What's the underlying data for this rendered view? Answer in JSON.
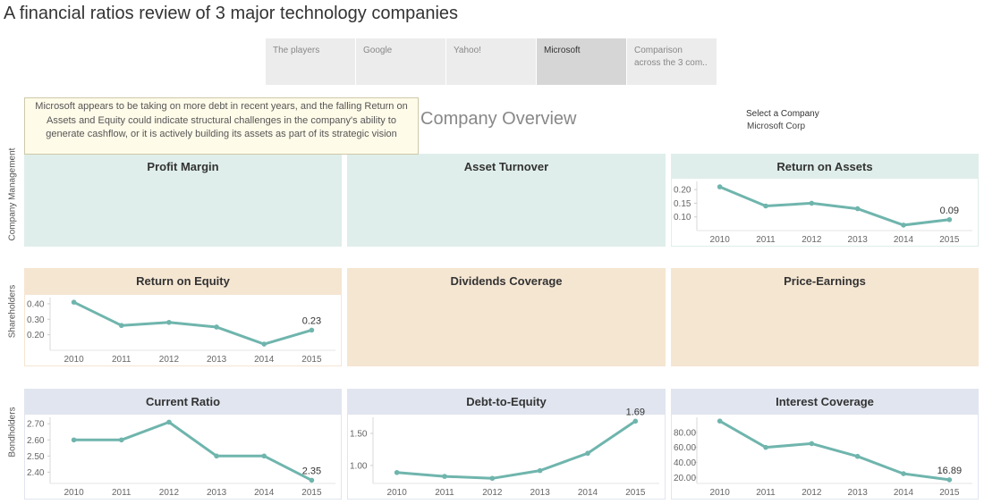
{
  "header": {
    "title": "A financial ratios review of 3 major technology companies"
  },
  "tabs": [
    {
      "label": "The players",
      "active": false
    },
    {
      "label": "Google",
      "active": false
    },
    {
      "label": "Yahoo!",
      "active": false
    },
    {
      "label": "Microsoft",
      "active": true
    },
    {
      "label": "Comparison across the 3 com..",
      "active": false
    }
  ],
  "overview_title": "Company Overview",
  "company_filter": {
    "label": "Select a Company",
    "value": "Microsoft Corp"
  },
  "tooltip": "Microsoft appears to be taking on more debt in recent years, and the falling Return on Assets and Equity could indicate structural challenges in the company's ability to generate cashflow, or it is actively building its assets as part of its strategic vision",
  "row_labels": {
    "management": "Company Management",
    "shareholders": "Shareholders",
    "bondholders": "Bondholders"
  },
  "panels": {
    "profit_margin": "Profit Margin",
    "asset_turnover": "Asset Turnover",
    "return_on_assets": "Return on Assets",
    "return_on_equity": "Return on Equity",
    "dividends_coverage": "Dividends Coverage",
    "price_earnings": "Price-Earnings",
    "current_ratio": "Current Ratio",
    "debt_to_equity": "Debt-to-Equity",
    "interest_coverage": "Interest Coverage"
  },
  "colors": {
    "line": "#6fb5ad",
    "management_bg": "#dfeeea",
    "shareholders_bg": "#f5e6d2",
    "bondholders_bg": "#e0e5ef"
  },
  "chart_data": [
    {
      "id": "roa",
      "type": "line",
      "title": "Return on Assets",
      "x": [
        "2010",
        "2011",
        "2012",
        "2013",
        "2014",
        "2015"
      ],
      "values": [
        0.21,
        0.14,
        0.15,
        0.13,
        0.07,
        0.09
      ],
      "yticks": [
        0.1,
        0.15,
        0.2
      ],
      "ytick_labels": [
        "0.10",
        "0.15",
        "0.20"
      ],
      "ylim": [
        0.05,
        0.23
      ],
      "last_label": "0.09"
    },
    {
      "id": "roe",
      "type": "line",
      "title": "Return on Equity",
      "x": [
        "2010",
        "2011",
        "2012",
        "2013",
        "2014",
        "2015"
      ],
      "values": [
        0.41,
        0.26,
        0.28,
        0.25,
        0.14,
        0.23
      ],
      "yticks": [
        0.2,
        0.3,
        0.4
      ],
      "ytick_labels": [
        "0.20",
        "0.30",
        "0.40"
      ],
      "ylim": [
        0.1,
        0.44
      ],
      "last_label": "0.23"
    },
    {
      "id": "current",
      "type": "line",
      "title": "Current Ratio",
      "x": [
        "2010",
        "2011",
        "2012",
        "2013",
        "2014",
        "2015"
      ],
      "values": [
        2.6,
        2.6,
        2.71,
        2.5,
        2.5,
        2.35
      ],
      "yticks": [
        2.4,
        2.5,
        2.6,
        2.7
      ],
      "ytick_labels": [
        "2.40",
        "2.50",
        "2.60",
        "2.70"
      ],
      "ylim": [
        2.33,
        2.74
      ],
      "last_label": "2.35"
    },
    {
      "id": "dte",
      "type": "line",
      "title": "Debt-to-Equity",
      "x": [
        "2010",
        "2011",
        "2012",
        "2013",
        "2014",
        "2015"
      ],
      "values": [
        0.89,
        0.83,
        0.8,
        0.92,
        1.19,
        1.69
      ],
      "yticks": [
        1.0,
        1.5
      ],
      "ytick_labels": [
        "1.00",
        "1.50"
      ],
      "ylim": [
        0.72,
        1.75
      ],
      "last_label": "1.69"
    },
    {
      "id": "ic",
      "type": "line",
      "title": "Interest Coverage",
      "x": [
        "2010",
        "2011",
        "2012",
        "2013",
        "2014",
        "2015"
      ],
      "values": [
        95,
        60,
        65,
        48,
        25,
        16.89
      ],
      "yticks": [
        20,
        40,
        60,
        80
      ],
      "ytick_labels": [
        "20.00",
        "40.00",
        "60.00",
        "80.00"
      ],
      "ylim": [
        12,
        100
      ],
      "last_label": "16.89"
    }
  ]
}
